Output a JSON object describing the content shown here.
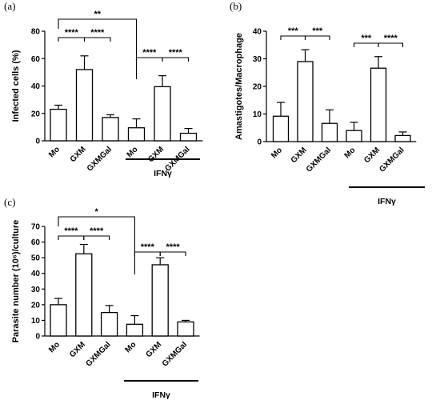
{
  "chart_data": [
    {
      "id": "a",
      "type": "bar",
      "panel_label": "(a)",
      "ylabel": "Infected cells (%)",
      "ylim": [
        0,
        80
      ],
      "yticks": [
        0,
        20,
        40,
        60,
        80
      ],
      "categories": [
        "Mo",
        "GXM",
        "GXMGal",
        "Mo",
        "GXM",
        "GXMGal"
      ],
      "values": [
        23,
        52,
        17,
        9.5,
        39.5,
        5.5
      ],
      "errors": [
        3,
        10,
        2,
        6.5,
        8,
        3.5
      ],
      "group_label": "IFNγ",
      "comparisons": [
        {
          "from": 0,
          "to": 1,
          "label": "****"
        },
        {
          "from": 1,
          "to": 2,
          "label": "****"
        },
        {
          "from": 0,
          "to": 3,
          "label": "**"
        },
        {
          "from": 3,
          "to": 4,
          "label": "****"
        },
        {
          "from": 4,
          "to": 5,
          "label": "****"
        }
      ]
    },
    {
      "id": "b",
      "type": "bar",
      "panel_label": "(b)",
      "ylabel": "Amastigotes/Macrophage",
      "ylim": [
        0,
        40
      ],
      "yticks": [
        0,
        10,
        20,
        30,
        40
      ],
      "categories": [
        "Mo",
        "GXM",
        "GXMGal",
        "Mo",
        "GXM",
        "GXMGal"
      ],
      "values": [
        9.2,
        29,
        6.6,
        4,
        26.6,
        2.2
      ],
      "errors": [
        5,
        4.3,
        4.9,
        3,
        4.2,
        1.3
      ],
      "group_label": "IFNγ",
      "comparisons": [
        {
          "from": 0,
          "to": 1,
          "label": "***"
        },
        {
          "from": 1,
          "to": 2,
          "label": "***"
        },
        {
          "from": 3,
          "to": 4,
          "label": "***"
        },
        {
          "from": 4,
          "to": 5,
          "label": "****"
        }
      ]
    },
    {
      "id": "c",
      "type": "bar",
      "panel_label": "(c)",
      "ylabel": "Parasite number (10⁶)/culture",
      "ylim": [
        0,
        70
      ],
      "yticks": [
        0,
        10,
        20,
        30,
        40,
        50,
        60,
        70
      ],
      "categories": [
        "Mo",
        "GXM",
        "GXMGal",
        "Mo",
        "GXM",
        "GXMGal"
      ],
      "values": [
        20,
        52.5,
        15,
        7.5,
        45.5,
        9
      ],
      "errors": [
        4,
        6,
        4.5,
        5.5,
        4.5,
        1
      ],
      "group_label": "IFNγ",
      "comparisons": [
        {
          "from": 0,
          "to": 1,
          "label": "****"
        },
        {
          "from": 1,
          "to": 2,
          "label": "****"
        },
        {
          "from": 0,
          "to": 3,
          "label": "*"
        },
        {
          "from": 3,
          "to": 4,
          "label": "****"
        },
        {
          "from": 4,
          "to": 5,
          "label": "****"
        }
      ]
    }
  ]
}
